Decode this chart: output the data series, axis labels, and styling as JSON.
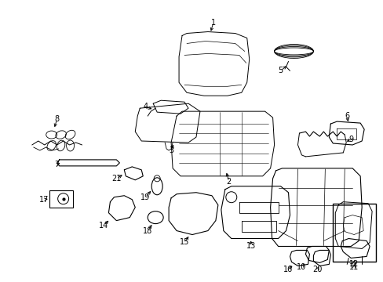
{
  "background_color": "#ffffff",
  "fig_width": 4.89,
  "fig_height": 3.6,
  "dpi": 100,
  "lw": 0.7,
  "label_fontsize": 7.0,
  "label_color": "#000000"
}
